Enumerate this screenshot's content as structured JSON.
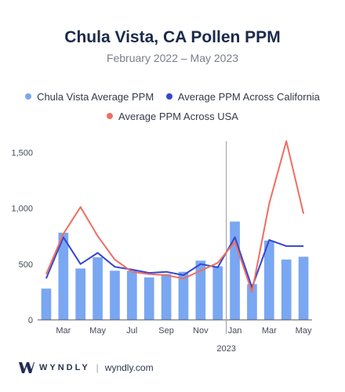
{
  "header": {
    "title": "Chula Vista, CA Pollen PPM",
    "subtitle": "February 2022 – May 2023"
  },
  "legend": [
    {
      "label": "Chula Vista Average PPM",
      "color": "#7aa7f2"
    },
    {
      "label": "Average PPM Across California",
      "color": "#3446cf"
    },
    {
      "label": "Average PPM Across USA",
      "color": "#ee6e63"
    }
  ],
  "footer": {
    "brand": "WYNDLY",
    "url": "wyndly.com"
  },
  "chart_data": {
    "type": "bar",
    "categories": [
      "Feb 2022",
      "Mar 2022",
      "Apr 2022",
      "May 2022",
      "Jun 2022",
      "Jul 2022",
      "Aug 2022",
      "Sep 2022",
      "Oct 2022",
      "Nov 2022",
      "Dec 2022",
      "Jan 2023",
      "Feb 2023",
      "Mar 2023",
      "Apr 2023",
      "May 2023"
    ],
    "x_tick_labels": [
      "",
      "Mar",
      "",
      "May",
      "",
      "Jul",
      "",
      "Sep",
      "",
      "Nov",
      "",
      "Jan",
      "",
      "Mar",
      "",
      "May"
    ],
    "year_label": "2023",
    "y_ticks": [
      0,
      500,
      1000,
      1500
    ],
    "y_tick_labels": [
      "0",
      "500",
      "1,000",
      "1,500"
    ],
    "ylim": [
      0,
      1600
    ],
    "grid": false,
    "legend_position": "top",
    "series": [
      {
        "name": "Chula Vista Average PPM",
        "type": "bar",
        "color": "#7aa7f2",
        "values": [
          280,
          780,
          460,
          560,
          440,
          440,
          380,
          410,
          430,
          530,
          480,
          880,
          320,
          710,
          540,
          565
        ]
      },
      {
        "name": "Average PPM Across California",
        "type": "line",
        "color": "#3446cf",
        "values": [
          370,
          740,
          500,
          600,
          475,
          450,
          420,
          430,
          400,
          500,
          470,
          740,
          290,
          715,
          660,
          660
        ]
      },
      {
        "name": "Average PPM Across USA",
        "type": "line",
        "color": "#ee6e63",
        "values": [
          410,
          770,
          1010,
          750,
          540,
          430,
          410,
          400,
          370,
          440,
          510,
          700,
          250,
          1040,
          1600,
          950
        ]
      }
    ]
  }
}
